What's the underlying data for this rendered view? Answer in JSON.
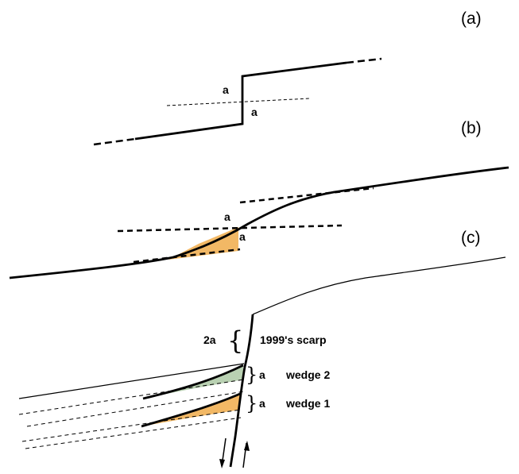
{
  "panels": {
    "a": {
      "label": "(a)",
      "offset_top": "a",
      "offset_bottom": "a"
    },
    "b": {
      "label": "(b)",
      "offset_top": "a",
      "offset_bottom": "a"
    },
    "c": {
      "label": "(c)",
      "scarp_offset": "2a",
      "scarp_label": "1999's scarp",
      "wedge2_offset": "a",
      "wedge2_label": "wedge 2",
      "wedge1_offset": "a",
      "wedge1_label": "wedge 1"
    }
  },
  "colors": {
    "line": "#000000",
    "wedge_orange": "#f2b865",
    "wedge_green": "#b9d1b2"
  }
}
